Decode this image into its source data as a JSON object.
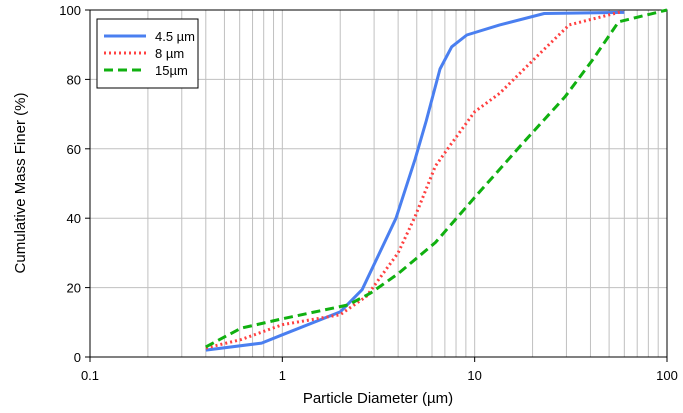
{
  "chart_data": {
    "type": "line",
    "title": "",
    "xlabel": "Particle Diameter (µm)",
    "ylabel": "Cumulative Mass Finer (%)",
    "xscale": "log",
    "xlim": [
      0.1,
      100
    ],
    "ylim": [
      0,
      100
    ],
    "xticks": [
      "0.1",
      "1",
      "10",
      "100"
    ],
    "yticks": [
      "0",
      "20",
      "40",
      "60",
      "80",
      "100"
    ],
    "grid": true,
    "legend_position": "top-left",
    "series": [
      {
        "name": "4.5 µm",
        "color": "#4a7ff0",
        "style": "solid",
        "x": [
          0.4,
          0.78,
          1.0,
          2.0,
          2.6,
          3.9,
          4.9,
          5.6,
          6.6,
          7.6,
          9.1,
          13.5,
          23,
          60
        ],
        "y": [
          2,
          4,
          6.4,
          13,
          19.4,
          40,
          57,
          68,
          83,
          89.4,
          92.8,
          95.7,
          99,
          99.3
        ]
      },
      {
        "name": "8 µm",
        "color": "#ff4040",
        "style": "dotted",
        "x": [
          0.4,
          0.61,
          1.0,
          2.0,
          2.74,
          4.0,
          4.9,
          6.25,
          7.6,
          10,
          13.5,
          21.4,
          31,
          59
        ],
        "y": [
          2.6,
          5,
          9.3,
          12.2,
          17.5,
          30,
          40.5,
          55,
          61.6,
          70.7,
          76,
          87,
          95.7,
          99.6
        ]
      },
      {
        "name": "15µm",
        "color": "#10b010",
        "style": "dashed",
        "x": [
          0.4,
          0.61,
          1.0,
          2.2,
          2.87,
          4.0,
          6.25,
          10,
          17.8,
          29.5,
          41,
          56,
          100
        ],
        "y": [
          2.9,
          8.3,
          11,
          15,
          18.4,
          24,
          33,
          46,
          61.6,
          75,
          85.6,
          96.6,
          100
        ]
      }
    ]
  }
}
